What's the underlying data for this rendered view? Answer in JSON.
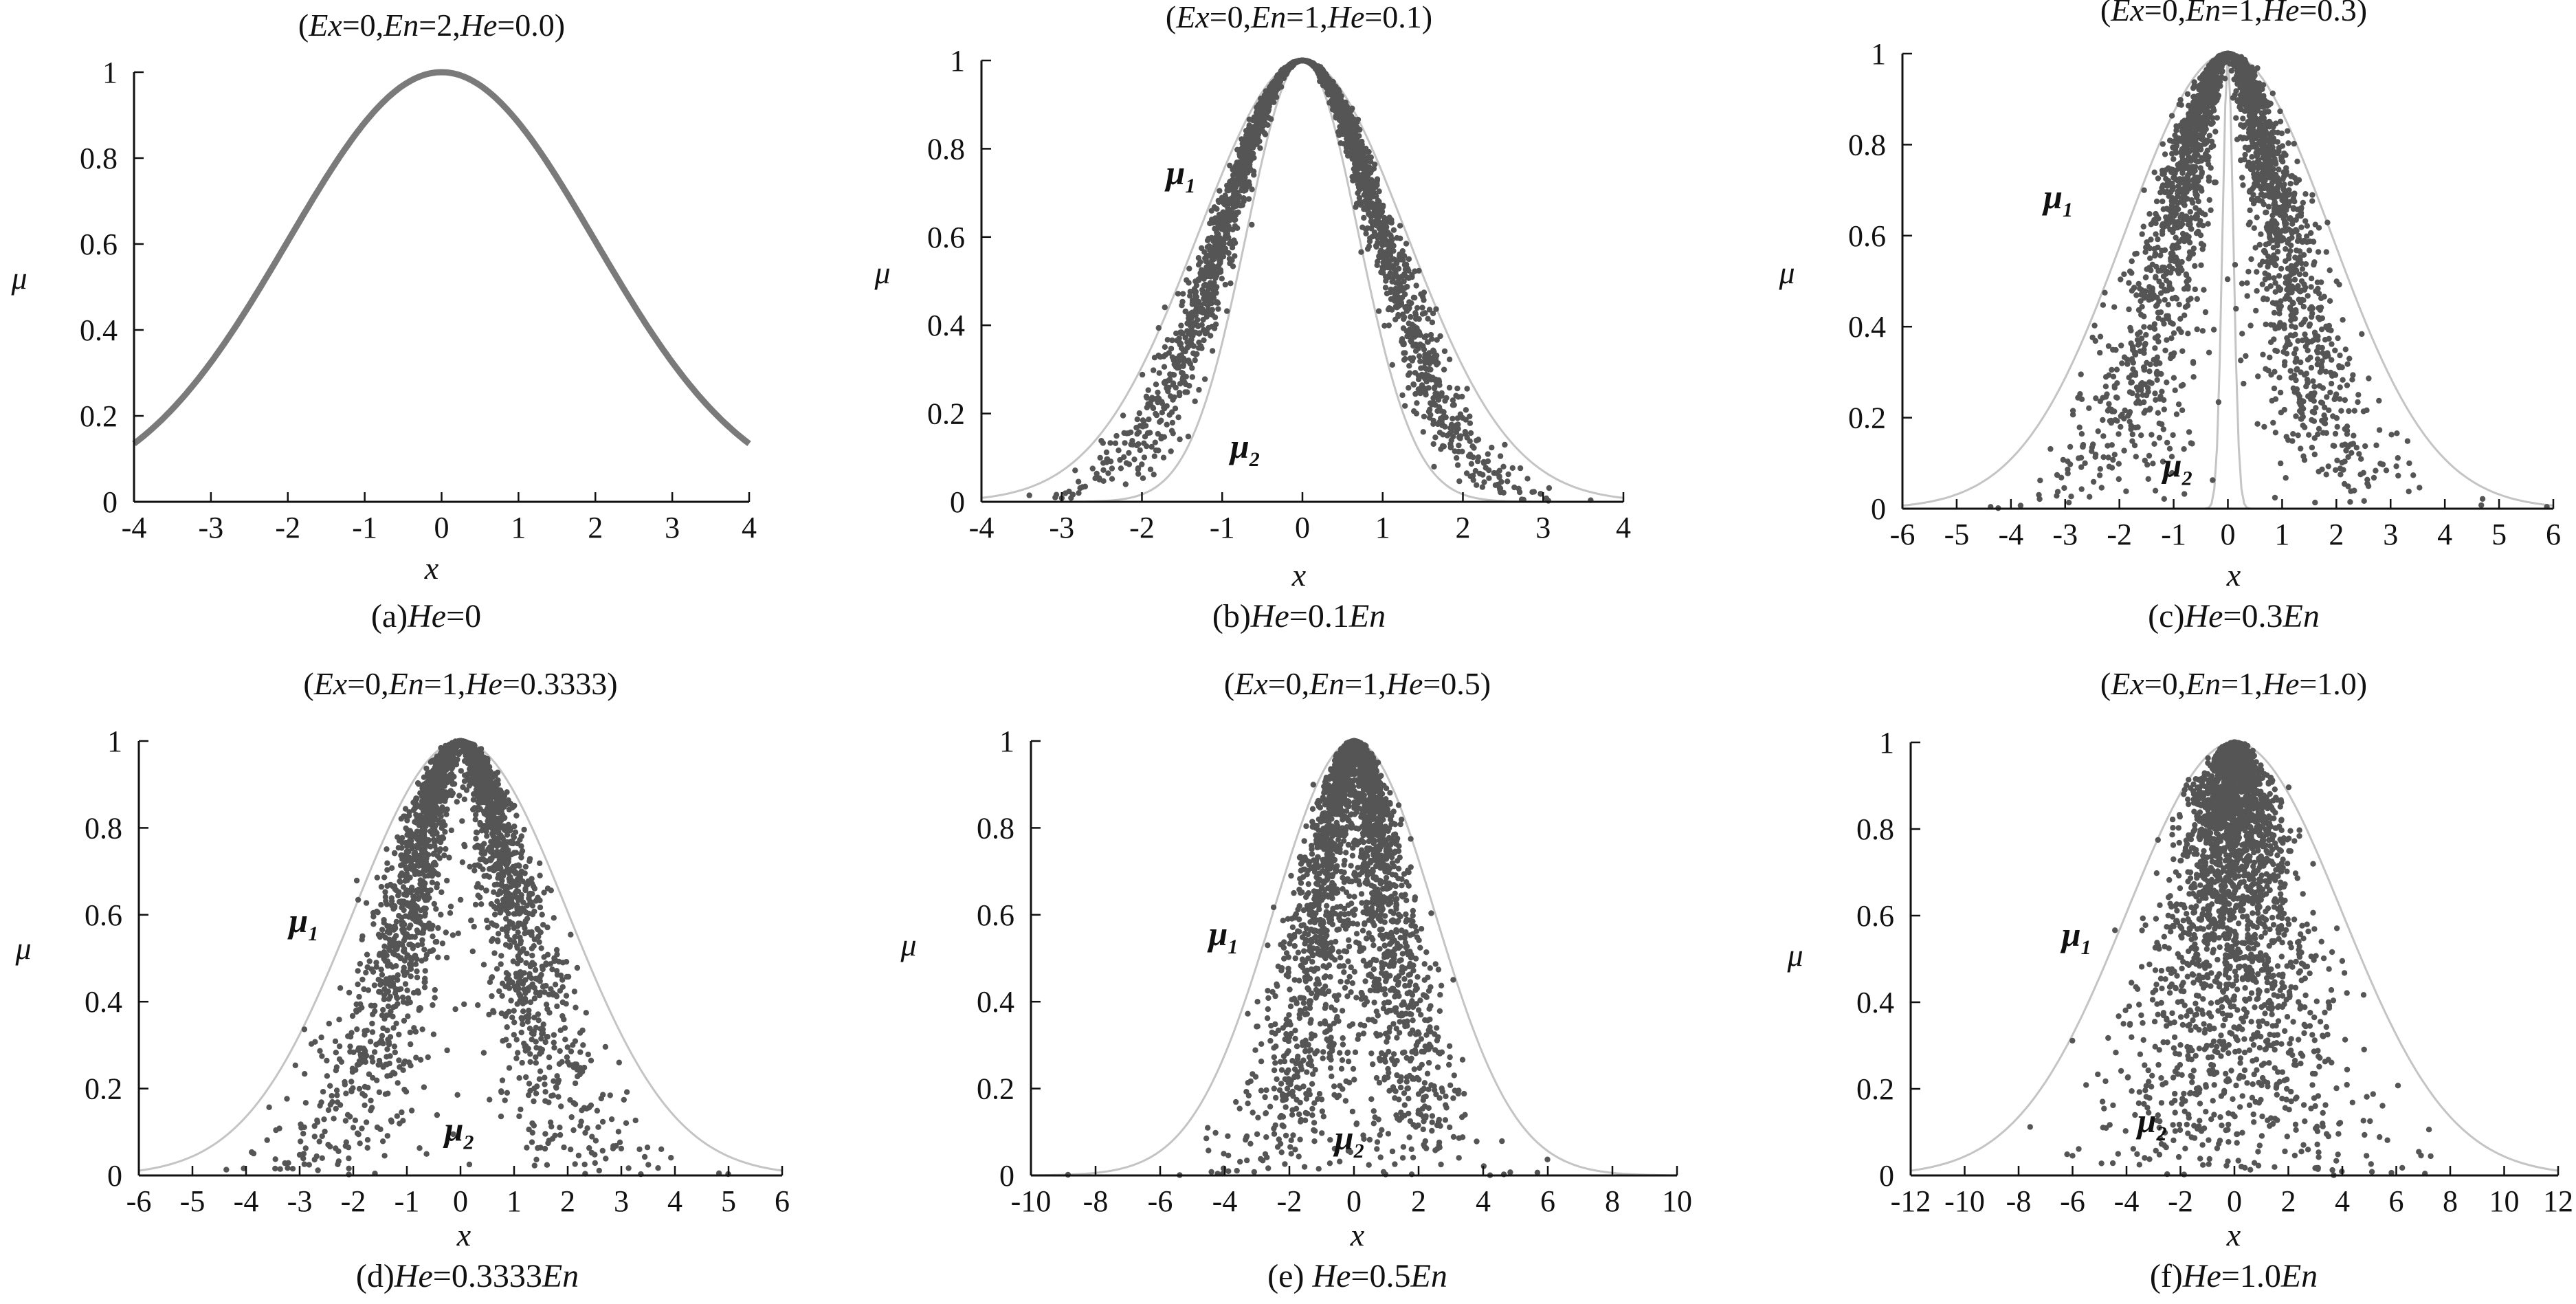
{
  "chart_data": [
    {
      "type": "scatter",
      "title": "(Ex=0,En=2,He=0.0)",
      "caption": "(a)He=0",
      "xlabel": "x",
      "ylabel": "μ",
      "xlim": [
        -4,
        4
      ],
      "ylim": [
        0,
        1
      ],
      "xticks": [
        -4,
        -3,
        -2,
        -1,
        0,
        1,
        2,
        3,
        4
      ],
      "yticks": [
        0,
        0.2,
        0.4,
        0.6,
        0.8,
        1
      ],
      "ytick_labels": [
        "0",
        "0.2",
        "0.4",
        "0.6",
        "0.8",
        "1"
      ],
      "series": [
        {
          "kind": "cloud_drops",
          "Ex": 0,
          "En": 2,
          "He": 0.0,
          "drops": 3000
        }
      ],
      "annotations": []
    },
    {
      "type": "scatter",
      "title": "(Ex=0,En=1,He=0.1)",
      "caption": "(b)He=0.1En",
      "xlabel": "x",
      "ylabel": "μ",
      "xlim": [
        -4,
        4
      ],
      "ylim": [
        0,
        1
      ],
      "xticks": [
        -4,
        -3,
        -2,
        -1,
        0,
        1,
        2,
        3,
        4
      ],
      "yticks": [
        0,
        0.2,
        0.4,
        0.6,
        0.8,
        1
      ],
      "ytick_labels": [
        "0",
        "0.2",
        "0.4",
        "0.6",
        "0.8",
        "1"
      ],
      "series": [
        {
          "kind": "cloud_drops",
          "Ex": 0,
          "En": 1,
          "He": 0.1,
          "drops": 3000
        },
        {
          "kind": "outer_envelope",
          "Ex": 0,
          "En": 1.3
        },
        {
          "kind": "inner_envelope",
          "Ex": 0,
          "En": 0.7
        }
      ],
      "annotations": [
        {
          "text": "μ",
          "sub": "1",
          "x": -1.7,
          "y": 0.72
        },
        {
          "text": "μ",
          "sub": "2",
          "x": -0.9,
          "y": 0.1
        }
      ]
    },
    {
      "type": "scatter",
      "title": "(Ex=0,En=1,He=0.3)",
      "caption": "(c)He=0.3En",
      "xlabel": "x",
      "ylabel": "μ",
      "xlim": [
        -6,
        6
      ],
      "ylim": [
        0,
        1
      ],
      "xticks": [
        -6,
        -5,
        -4,
        -3,
        -2,
        -1,
        0,
        1,
        2,
        3,
        4,
        5,
        6
      ],
      "yticks": [
        0,
        0.2,
        0.4,
        0.6,
        0.8,
        1
      ],
      "ytick_labels": [
        "0",
        "0.2",
        "0.4",
        "0.6",
        "0.8",
        "1"
      ],
      "series": [
        {
          "kind": "cloud_drops",
          "Ex": 0,
          "En": 1,
          "He": 0.3,
          "drops": 3000
        },
        {
          "kind": "outer_envelope",
          "Ex": 0,
          "En": 1.9
        },
        {
          "kind": "inner_envelope",
          "Ex": 0,
          "En": 0.1
        }
      ],
      "annotations": [
        {
          "text": "μ",
          "sub": "1",
          "x": -3.4,
          "y": 0.66
        },
        {
          "text": "μ",
          "sub": "2",
          "x": -1.2,
          "y": 0.07
        }
      ]
    },
    {
      "type": "scatter",
      "title": "(Ex=0,En=1,He=0.3333)",
      "caption": "(d)He=0.3333En",
      "xlabel": "x",
      "ylabel": "μ",
      "xlim": [
        -6,
        6
      ],
      "ylim": [
        0,
        1
      ],
      "xticks": [
        -6,
        -5,
        -4,
        -3,
        -2,
        -1,
        0,
        1,
        2,
        3,
        4,
        5,
        6
      ],
      "yticks": [
        0,
        0.2,
        0.4,
        0.6,
        0.8,
        1
      ],
      "ytick_labels": [
        "0",
        "0.2",
        "0.4",
        "0.6",
        "0.8",
        "1"
      ],
      "series": [
        {
          "kind": "cloud_drops",
          "Ex": 0,
          "En": 1,
          "He": 0.3333,
          "drops": 3000
        },
        {
          "kind": "outer_envelope",
          "Ex": 0,
          "En": 2.0
        }
      ],
      "annotations": [
        {
          "text": "μ",
          "sub": "1",
          "x": -3.2,
          "y": 0.56
        },
        {
          "text": "μ",
          "sub": "2",
          "x": -0.3,
          "y": 0.08
        }
      ]
    },
    {
      "type": "scatter",
      "title": "(Ex=0,En=1,He=0.5)",
      "caption": "(e) He=0.5En",
      "xlabel": "x",
      "ylabel": "μ",
      "xlim": [
        -10,
        10
      ],
      "ylim": [
        0,
        1
      ],
      "xticks": [
        -10,
        -8,
        -6,
        -4,
        -2,
        0,
        2,
        4,
        6,
        8,
        10
      ],
      "yticks": [
        0,
        0.2,
        0.4,
        0.6,
        0.8,
        1
      ],
      "ytick_labels": [
        "0",
        "0.2",
        "0.4",
        "0.6",
        "0.8",
        "1"
      ],
      "series": [
        {
          "kind": "cloud_drops",
          "Ex": 0,
          "En": 1,
          "He": 0.5,
          "drops": 3000
        },
        {
          "kind": "outer_envelope",
          "Ex": 0,
          "En": 2.5
        }
      ],
      "annotations": [
        {
          "text": "μ",
          "sub": "1",
          "x": -4.5,
          "y": 0.53
        },
        {
          "text": "μ",
          "sub": "2",
          "x": -0.6,
          "y": 0.06
        }
      ]
    },
    {
      "type": "scatter",
      "title": "(Ex=0,En=1,He=1.0)",
      "caption": "(f)He=1.0En",
      "xlabel": "x",
      "ylabel": "μ",
      "xlim": [
        -12,
        12
      ],
      "ylim": [
        0,
        1
      ],
      "xticks": [
        -12,
        -10,
        -8,
        -6,
        -4,
        -2,
        0,
        2,
        4,
        6,
        8,
        10,
        12
      ],
      "yticks": [
        0,
        0.2,
        0.4,
        0.6,
        0.8,
        1
      ],
      "ytick_labels": [
        "0",
        "0.2",
        "0.4",
        "0.6",
        "0.8",
        "1"
      ],
      "series": [
        {
          "kind": "cloud_drops",
          "Ex": 0,
          "En": 1,
          "He": 1.0,
          "drops": 3000
        },
        {
          "kind": "outer_envelope",
          "Ex": 0,
          "En": 4.0
        }
      ],
      "annotations": [
        {
          "text": "μ",
          "sub": "1",
          "x": -6.4,
          "y": 0.53
        },
        {
          "text": "μ",
          "sub": "2",
          "x": -3.6,
          "y": 0.1
        }
      ]
    }
  ],
  "colors": {
    "drops": "#555555",
    "envelope": "#c4c4c4",
    "axis": "#111111",
    "text": "#111111"
  }
}
